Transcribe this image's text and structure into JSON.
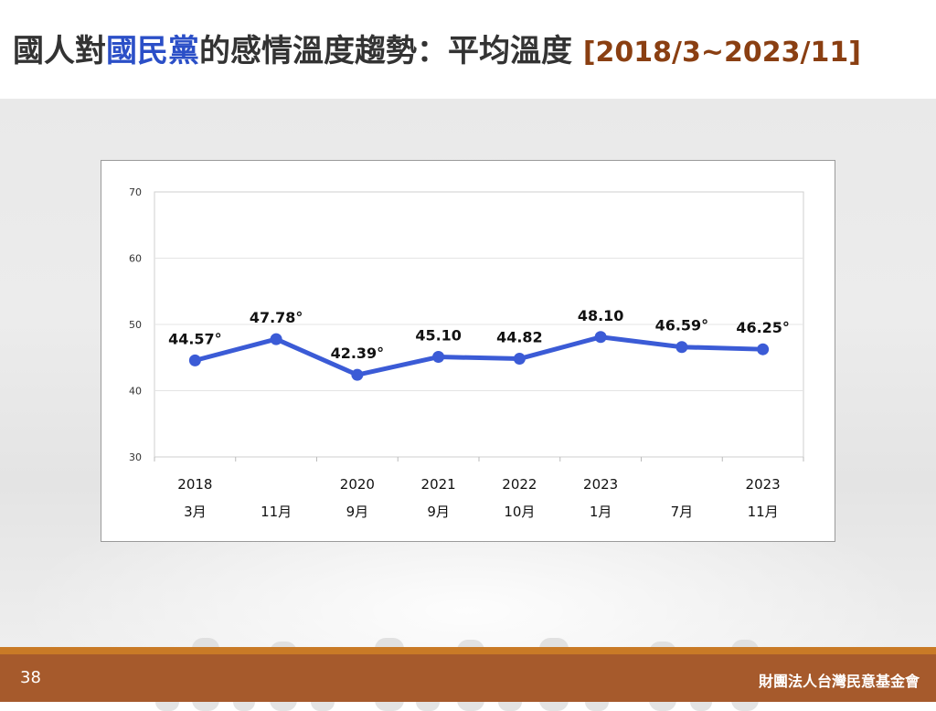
{
  "header": {
    "title_part1": "國人對",
    "title_party": "國民黨",
    "title_part2": "的感情溫度趨勢：平均溫度",
    "title_range": "[2018/3~2023/11]"
  },
  "footer": {
    "page_number": "38",
    "organization": "財團法人台灣民意基金會"
  },
  "colors": {
    "accent_blue": "#2b4fc7",
    "line": "#3b5bd6",
    "title_text": "#333333",
    "range_text": "#8a3f12",
    "footer_bg": "#a65a2c",
    "footer_strip": "#c97a26"
  },
  "chart_data": {
    "type": "line",
    "categories": [
      {
        "year": "2018",
        "month": "3月"
      },
      {
        "year": "",
        "month": "11月"
      },
      {
        "year": "2020",
        "month": "9月"
      },
      {
        "year": "2021",
        "month": "9月"
      },
      {
        "year": "2022",
        "month": "10月"
      },
      {
        "year": "2023",
        "month": "1月"
      },
      {
        "year": "",
        "month": "7月"
      },
      {
        "year": "2023",
        "month": "11月"
      }
    ],
    "series": [
      {
        "values": [
          44.57,
          47.78,
          42.39,
          45.1,
          44.82,
          48.1,
          46.59,
          46.25
        ],
        "labels": [
          "44.57°",
          "47.78°",
          "42.39°",
          "45.10",
          "44.82",
          "48.10",
          "46.59°",
          "46.25°"
        ]
      }
    ],
    "y_ticks": [
      30,
      40,
      50,
      60,
      70
    ],
    "ylim": [
      30,
      70
    ],
    "grid": true,
    "legend": "none"
  }
}
